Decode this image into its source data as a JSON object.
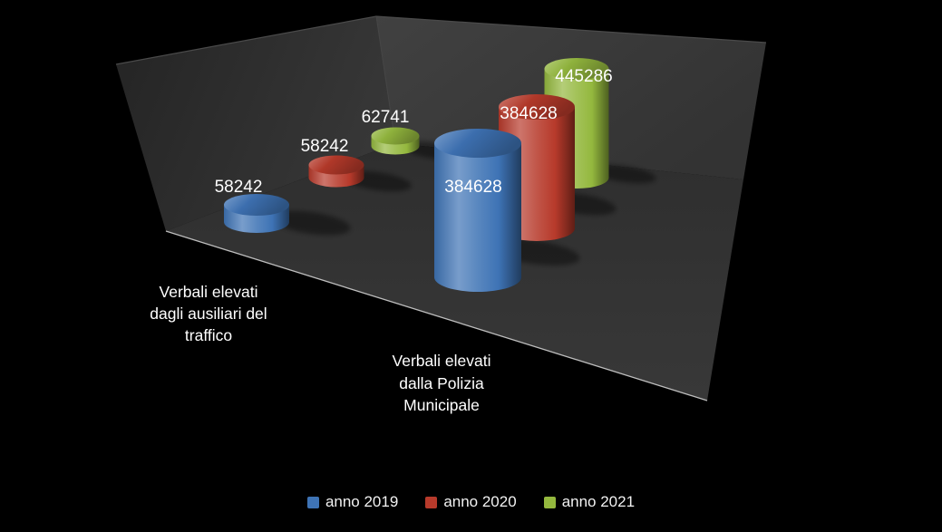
{
  "chart_data": {
    "type": "bar",
    "subtype": "3d-cylinder",
    "title": "",
    "categories": [
      "Verbali elevati dagli ausiliari del traffico",
      "Verbali elevati dalla Polizia Municipale"
    ],
    "series": [
      {
        "name": "anno 2019",
        "color": "#3E73B5",
        "values": [
          58242,
          384628
        ]
      },
      {
        "name": "anno 2020",
        "color": "#B73A2B",
        "values": [
          58242,
          384628
        ]
      },
      {
        "name": "anno 2021",
        "color": "#94B83E",
        "values": [
          62741,
          445286
        ]
      }
    ],
    "data_labels_visible": true,
    "data_label_color": "#FFFFFF",
    "legend_position": "bottom",
    "background": "#000000",
    "wall_color": "#3B3B3B",
    "floor_color": "#343434",
    "grid": false,
    "axes_visible": false
  },
  "category_labels": [
    {
      "lines": [
        "Verbali elevati",
        "dagli ausiliari del",
        "traffico"
      ]
    },
    {
      "lines": [
        "Verbali elevati",
        "dalla Polizia",
        "Municipale"
      ]
    }
  ]
}
